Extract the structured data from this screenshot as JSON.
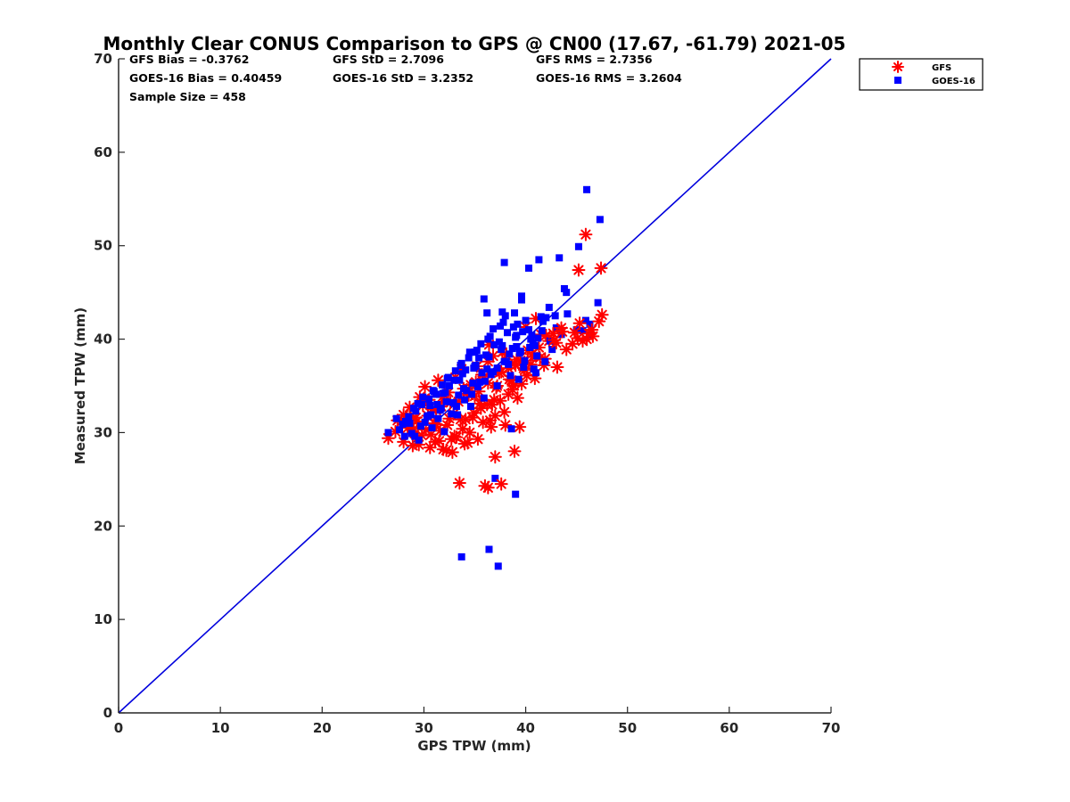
{
  "chart_data": {
    "type": "scatter",
    "title": "Monthly Clear CONUS Comparison to GPS @ CN00 (17.67, -61.79) 2021-05",
    "xlabel": "GPS TPW (mm)",
    "ylabel": "Measured TPW (mm)",
    "xlim": [
      0,
      70
    ],
    "ylim": [
      0,
      70
    ],
    "xticks": [
      "0",
      "10",
      "20",
      "30",
      "40",
      "50",
      "60",
      "70"
    ],
    "yticks": [
      "0",
      "10",
      "20",
      "30",
      "40",
      "50",
      "60",
      "70"
    ],
    "legend": {
      "position": "top-right",
      "entries": [
        "GFS",
        "GOES-16"
      ]
    },
    "reference_line": {
      "name": "1:1 line",
      "color": "#0000dd",
      "points": [
        [
          0,
          0
        ],
        [
          70,
          70
        ]
      ]
    },
    "stats": {
      "gfs_bias": "GFS Bias = -0.3762",
      "gfs_std": "GFS StD = 2.7096",
      "gfs_rms": "GFS RMS = 2.7356",
      "goes_bias": "GOES-16 Bias = 0.40459",
      "goes_std": "GOES-16 StD = 3.2352",
      "goes_rms": "GOES-16 RMS = 3.2604",
      "sample_size": "Sample Size = 458"
    },
    "series": [
      {
        "name": "GFS",
        "marker": "asterisk",
        "color": "#ff0000",
        "x": [
          26.5,
          27.2,
          28.0,
          28.4,
          28.9,
          29.3,
          29.8,
          30.2,
          30.6,
          31.0,
          31.5,
          31.9,
          32.3,
          32.8,
          33.2,
          33.6,
          34.0,
          34.5,
          34.9,
          35.3,
          35.8,
          36.2,
          36.6,
          37.0,
          37.5,
          37.9,
          38.3,
          38.8,
          39.2,
          39.6,
          40.1,
          40.5,
          40.9,
          41.4,
          41.8,
          42.3,
          42.7,
          43.1,
          43.5,
          44.0,
          44.6,
          45.1,
          45.6,
          46.2,
          46.6,
          47.2,
          47.4,
          45.9,
          45.2,
          43.6,
          42.8,
          41.5,
          40.7,
          39.8,
          39.1,
          38.4,
          37.6,
          36.8,
          36.3,
          35.9,
          35.1,
          34.2,
          33.7,
          33.1,
          32.4,
          31.8,
          31.2,
          30.5,
          29.9,
          29.2,
          28.6,
          28.0,
          27.4,
          30.1,
          31.4,
          32.6,
          33.9,
          35.2,
          36.4,
          37.7,
          38.9,
          40.2,
          41.3,
          29.6,
          30.8,
          32.0,
          33.4,
          34.6,
          35.7,
          37.1,
          38.3,
          39.5,
          40.6,
          41.9,
          28.7,
          30.0,
          31.2,
          32.5,
          33.8,
          35.0,
          36.3,
          37.4,
          38.6,
          39.9,
          27.8,
          29.1,
          30.3,
          31.6,
          32.9,
          34.1,
          35.4,
          36.7,
          33.5,
          36.0,
          36.3,
          37.6,
          37.0,
          38.9,
          39.4,
          34.3,
          36.5,
          38.0,
          31.1,
          32.2,
          30.7,
          29.5,
          28.3,
          33.0,
          34.8,
          35.6,
          37.2,
          38.1,
          39.0,
          40.0,
          41.0,
          42.0,
          43.0,
          44.8,
          45.3,
          46.0,
          46.5,
          47.5,
          36.9,
          38.7,
          35.5,
          34.4,
          31.7,
          30.4,
          29.0,
          32.7
        ],
        "y": [
          29.4,
          30.1,
          29.0,
          30.5,
          28.6,
          31.2,
          29.7,
          30.3,
          28.4,
          31.0,
          29.1,
          28.2,
          30.8,
          27.9,
          29.5,
          31.4,
          28.8,
          30.0,
          32.1,
          29.3,
          31.1,
          33.0,
          30.6,
          31.8,
          33.4,
          32.2,
          34.1,
          35.0,
          33.7,
          35.2,
          36.1,
          37.3,
          35.8,
          38.0,
          37.2,
          39.8,
          40.6,
          37.0,
          41.2,
          38.9,
          39.5,
          40.1,
          39.8,
          40.6,
          40.3,
          41.9,
          47.6,
          51.2,
          47.4,
          40.8,
          39.9,
          40.5,
          38.1,
          36.9,
          37.8,
          35.7,
          36.5,
          38.2,
          37.6,
          36.0,
          35.4,
          34.6,
          36.8,
          35.9,
          34.3,
          33.8,
          32.4,
          33.5,
          32.9,
          31.6,
          32.7,
          31.9,
          31.3,
          34.9,
          35.6,
          33.2,
          34.7,
          37.1,
          39.4,
          38.6,
          37.4,
          38.8,
          39.1,
          33.8,
          32.5,
          34.0,
          33.3,
          35.1,
          36.2,
          34.8,
          36.9,
          37.7,
          38.4,
          37.9,
          31.7,
          33.6,
          30.9,
          31.5,
          30.4,
          33.9,
          35.3,
          36.4,
          35.6,
          36.7,
          31.2,
          29.9,
          33.1,
          30.2,
          32.0,
          31.4,
          34.4,
          33.0,
          24.6,
          24.3,
          24.1,
          24.5,
          27.4,
          28.0,
          30.6,
          28.9,
          31.3,
          30.8,
          29.0,
          28.1,
          29.8,
          28.7,
          30.9,
          29.6,
          31.6,
          32.6,
          35.0,
          38.3,
          37.2,
          41.3,
          42.2,
          40.4,
          39.6,
          40.7,
          41.7,
          40.0,
          41.0,
          42.6,
          33.5,
          34.6,
          33.1,
          34.0,
          32.8,
          31.8,
          30.4,
          29.3
        ]
      },
      {
        "name": "GOES-16",
        "marker": "square",
        "color": "#0000ff",
        "x": [
          26.5,
          27.3,
          28.1,
          28.6,
          29.0,
          29.5,
          29.9,
          30.3,
          30.8,
          31.2,
          31.6,
          32.0,
          32.5,
          32.9,
          33.3,
          33.8,
          34.2,
          34.6,
          35.1,
          35.5,
          35.9,
          36.4,
          36.8,
          37.2,
          37.7,
          38.1,
          38.5,
          39.0,
          39.4,
          39.8,
          40.3,
          40.7,
          41.1,
          41.6,
          42.0,
          42.4,
          43.0,
          43.5,
          44.1,
          45.0,
          45.9,
          46.4,
          47.1,
          47.3,
          46.0,
          45.2,
          43.3,
          41.3,
          40.3,
          39.6,
          38.9,
          37.9,
          37.7,
          36.2,
          35.9,
          33.7,
          37.0,
          39.0,
          37.3,
          36.4,
          38.6,
          39.3,
          40.8,
          41.9,
          42.6,
          39.6,
          38.2,
          36.9,
          35.4,
          34.1,
          33.0,
          32.1,
          31.3,
          30.4,
          29.7,
          28.8,
          28.2,
          27.6,
          30.6,
          31.9,
          33.5,
          34.9,
          36.1,
          37.4,
          38.8,
          40.0,
          41.2,
          29.4,
          30.9,
          32.3,
          33.6,
          35.0,
          36.3,
          37.5,
          38.7,
          39.9,
          41.0,
          28.5,
          29.8,
          31.0,
          32.4,
          33.7,
          35.2,
          36.5,
          37.8,
          39.1,
          40.4,
          27.9,
          29.2,
          30.5,
          31.8,
          33.1,
          34.4,
          35.6,
          36.8,
          38.0,
          39.2,
          40.5,
          32.7,
          34.0,
          35.3,
          36.6,
          37.9,
          39.1,
          31.4,
          33.2,
          34.7,
          36.0,
          37.2,
          38.4,
          30.1,
          31.7,
          33.4,
          34.8,
          36.2,
          38.3,
          39.5,
          40.6,
          29.1,
          30.7,
          32.2,
          33.9,
          35.7,
          37.6,
          39.7,
          41.5,
          42.3,
          44.0,
          45.6,
          46.3,
          43.8,
          42.9,
          41.7,
          40.9,
          35.0,
          34.5
        ],
        "y": [
          30.0,
          31.5,
          29.6,
          31.0,
          32.6,
          29.2,
          33.8,
          31.7,
          30.5,
          34.1,
          32.4,
          30.1,
          35.0,
          33.2,
          31.9,
          36.3,
          34.5,
          32.8,
          37.2,
          35.4,
          33.7,
          38.1,
          36.5,
          35.0,
          39.3,
          37.6,
          36.1,
          40.2,
          38.5,
          37.0,
          41.0,
          39.6,
          38.2,
          40.9,
          42.3,
          39.8,
          41.2,
          40.5,
          42.7,
          41.0,
          42.0,
          40.5,
          43.9,
          52.8,
          56.0,
          49.9,
          48.7,
          48.5,
          47.6,
          44.6,
          42.8,
          48.2,
          42.9,
          42.8,
          44.3,
          16.7,
          25.1,
          23.4,
          15.7,
          17.5,
          30.4,
          35.7,
          36.8,
          37.6,
          38.9,
          44.2,
          40.7,
          39.4,
          38.0,
          36.7,
          35.6,
          34.3,
          33.0,
          31.8,
          30.7,
          29.9,
          31.2,
          30.3,
          32.9,
          34.2,
          35.6,
          36.9,
          38.3,
          39.7,
          41.3,
          42.0,
          40.1,
          33.1,
          34.5,
          35.8,
          37.2,
          38.6,
          40.0,
          41.4,
          39.0,
          37.7,
          36.4,
          31.7,
          33.0,
          34.4,
          35.9,
          37.4,
          38.8,
          40.3,
          41.8,
          40.4,
          39.1,
          30.9,
          32.3,
          33.6,
          35.1,
          36.6,
          38.0,
          39.5,
          41.1,
          42.5,
          41.6,
          40.0,
          32.0,
          33.5,
          34.9,
          36.2,
          37.6,
          39.2,
          31.5,
          32.8,
          34.1,
          35.5,
          36.9,
          38.4,
          31.1,
          32.6,
          34.0,
          35.3,
          36.8,
          37.3,
          38.7,
          40.4,
          29.6,
          31.9,
          33.3,
          34.7,
          36.4,
          38.9,
          40.8,
          42.4,
          43.4,
          45.0,
          40.9,
          41.6,
          45.4,
          42.5,
          41.9,
          39.3,
          37.1,
          38.6
        ]
      }
    ]
  }
}
